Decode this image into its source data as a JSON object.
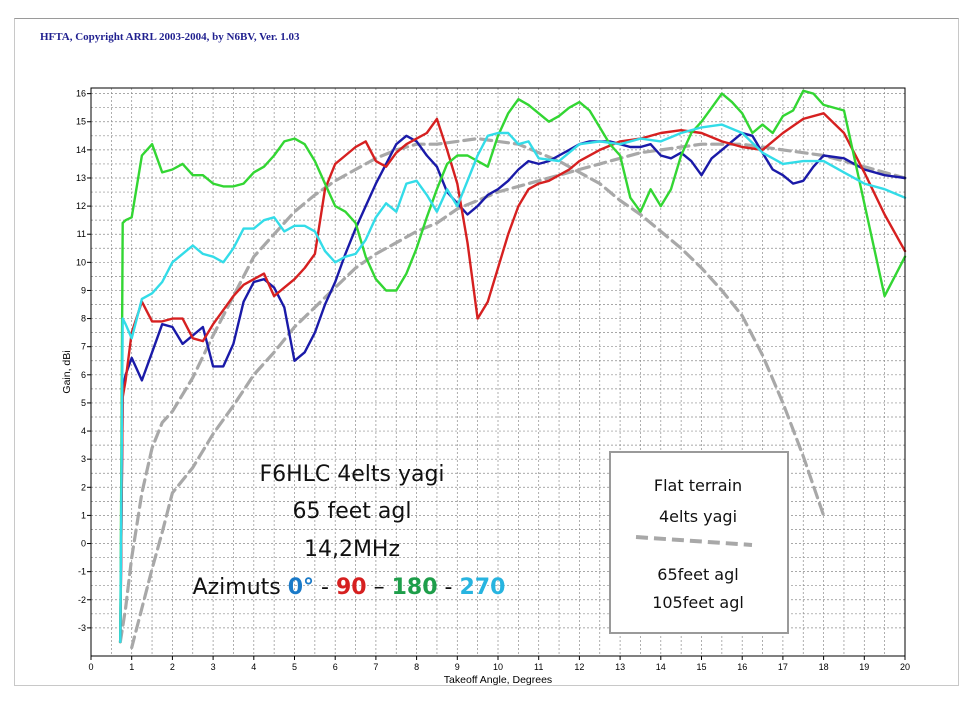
{
  "header": {
    "title": "HFTA, Copyright ARRL 2003-2004, by N6BV, Ver. 1.03"
  },
  "annotation": {
    "line1": "F6HLC 4elts yagi",
    "line2": "65 feet agl",
    "line3": "14,2MHz",
    "azimuths_prefix": "Azimuts ",
    "az0": "0°",
    "sep1": " - ",
    "az90": "90",
    "sep2": " – ",
    "az180": "180",
    "sep3": " - ",
    "az270": "270"
  },
  "legend_box": {
    "line1": "Flat terrain",
    "line2": "4elts yagi",
    "line3": "65feet agl",
    "line4": "105feet agl"
  },
  "colors": {
    "az0": "#1a1aa8",
    "az90": "#d62020",
    "az180": "#33d633",
    "az270": "#33dce8",
    "reference": "#a8a8a8"
  },
  "chart_data": {
    "type": "line",
    "title": "HFTA, Copyright ARRL 2003-2004, by N6BV, Ver. 1.03",
    "xlabel": "Takeoff Angle, Degrees",
    "ylabel": "Gain, dBi",
    "xlim": [
      0,
      20
    ],
    "ylim": [
      -4,
      16.2
    ],
    "x_ticks": [
      "0",
      "1",
      "2",
      "3",
      "4",
      "5",
      "6",
      "7",
      "8",
      "9",
      "10",
      "11",
      "12",
      "13",
      "14",
      "15",
      "16",
      "17",
      "18",
      "19",
      "20"
    ],
    "y_ticks": [
      "-3",
      "-2",
      "-1",
      "0",
      "1",
      "2",
      "3",
      "4",
      "5",
      "6",
      "7",
      "8",
      "9",
      "10",
      "11",
      "12",
      "13",
      "14",
      "15",
      "16"
    ],
    "grid": true,
    "series": [
      {
        "name": "0°",
        "color": "#1a1aa8",
        "x": [
          0.72,
          0.78,
          0.85,
          1.0,
          1.25,
          1.5,
          1.75,
          2.0,
          2.25,
          2.5,
          2.75,
          3.0,
          3.25,
          3.5,
          3.75,
          4.0,
          4.25,
          4.5,
          4.75,
          5.0,
          5.25,
          5.5,
          5.75,
          6.0,
          6.25,
          6.5,
          6.75,
          7.0,
          7.25,
          7.5,
          7.75,
          8.0,
          8.25,
          8.5,
          8.75,
          9.0,
          9.25,
          9.5,
          9.75,
          10.0,
          10.25,
          10.5,
          10.75,
          11.0,
          11.25,
          11.5,
          11.75,
          12.0,
          12.25,
          12.5,
          12.75,
          13.0,
          13.25,
          13.5,
          13.75,
          14.0,
          14.25,
          14.5,
          14.75,
          15.0,
          15.25,
          15.5,
          15.75,
          16.0,
          16.25,
          16.5,
          16.75,
          17.0,
          17.25,
          17.5,
          17.75,
          18.0,
          18.5,
          19.0,
          19.5,
          20.0
        ],
        "y": [
          -3.5,
          5.5,
          6.0,
          6.6,
          5.8,
          6.8,
          7.8,
          7.7,
          7.1,
          7.4,
          7.7,
          6.3,
          6.3,
          7.1,
          8.6,
          9.3,
          9.4,
          9.1,
          8.4,
          6.5,
          6.8,
          7.5,
          8.5,
          9.3,
          10.3,
          11.2,
          12.0,
          12.8,
          13.5,
          14.2,
          14.5,
          14.3,
          13.8,
          13.4,
          12.5,
          12.1,
          11.7,
          12.0,
          12.4,
          12.6,
          12.9,
          13.3,
          13.6,
          13.5,
          13.6,
          13.8,
          14.0,
          14.2,
          14.3,
          14.3,
          14.3,
          14.2,
          14.1,
          14.1,
          14.2,
          13.8,
          13.7,
          13.9,
          13.6,
          13.1,
          13.7,
          14.0,
          14.3,
          14.6,
          14.5,
          13.9,
          13.3,
          13.1,
          12.8,
          12.9,
          13.4,
          13.8,
          13.7,
          13.3,
          13.1,
          13.0
        ]
      },
      {
        "name": "90",
        "color": "#d62020",
        "x": [
          0.72,
          0.78,
          0.85,
          1.0,
          1.25,
          1.5,
          1.75,
          2.0,
          2.25,
          2.5,
          2.75,
          3.0,
          3.25,
          3.5,
          3.75,
          4.0,
          4.25,
          4.5,
          4.75,
          5.0,
          5.25,
          5.5,
          5.75,
          6.0,
          6.25,
          6.5,
          6.75,
          7.0,
          7.25,
          7.5,
          7.75,
          8.0,
          8.25,
          8.5,
          8.75,
          9.0,
          9.25,
          9.5,
          9.75,
          10.0,
          10.25,
          10.5,
          10.75,
          11.0,
          11.25,
          11.5,
          11.75,
          12.0,
          12.5,
          13.0,
          13.5,
          14.0,
          14.5,
          15.0,
          15.5,
          16.0,
          16.5,
          17.0,
          17.5,
          18.0,
          18.5,
          19.0,
          19.5,
          20.0
        ],
        "y": [
          -3.5,
          5.2,
          5.8,
          7.5,
          8.6,
          7.9,
          7.9,
          8.0,
          8.0,
          7.3,
          7.2,
          7.8,
          8.3,
          8.8,
          9.2,
          9.4,
          9.6,
          8.8,
          9.1,
          9.4,
          9.8,
          10.3,
          12.6,
          13.5,
          13.8,
          14.1,
          14.3,
          13.6,
          13.4,
          13.9,
          14.2,
          14.4,
          14.6,
          15.1,
          14.0,
          12.8,
          10.7,
          8.0,
          8.6,
          9.8,
          11.0,
          12.0,
          12.6,
          12.8,
          12.9,
          13.1,
          13.3,
          13.6,
          14.0,
          14.3,
          14.4,
          14.6,
          14.7,
          14.6,
          14.3,
          14.1,
          14.0,
          14.6,
          15.1,
          15.3,
          14.6,
          13.2,
          11.7,
          10.4
        ]
      },
      {
        "name": "180",
        "color": "#33d633",
        "x": [
          0.72,
          0.78,
          0.85,
          1.0,
          1.25,
          1.5,
          1.75,
          2.0,
          2.25,
          2.5,
          2.75,
          3.0,
          3.25,
          3.5,
          3.75,
          4.0,
          4.25,
          4.5,
          4.75,
          5.0,
          5.25,
          5.5,
          5.75,
          6.0,
          6.25,
          6.5,
          6.75,
          7.0,
          7.25,
          7.5,
          7.75,
          8.0,
          8.25,
          8.5,
          8.75,
          9.0,
          9.25,
          9.5,
          9.75,
          10.0,
          10.25,
          10.5,
          10.75,
          11.0,
          11.25,
          11.5,
          11.75,
          12.0,
          12.25,
          12.5,
          12.75,
          13.0,
          13.25,
          13.5,
          13.75,
          14.0,
          14.25,
          14.5,
          14.75,
          15.0,
          15.25,
          15.5,
          15.75,
          16.0,
          16.25,
          16.5,
          16.75,
          17.0,
          17.25,
          17.5,
          17.75,
          18.0,
          18.5,
          19.0,
          19.5,
          20.0
        ],
        "y": [
          -3.5,
          11.4,
          11.5,
          11.6,
          13.8,
          14.2,
          13.2,
          13.3,
          13.5,
          13.1,
          13.1,
          12.8,
          12.7,
          12.7,
          12.8,
          13.2,
          13.4,
          13.8,
          14.3,
          14.4,
          14.2,
          13.6,
          12.8,
          12.0,
          11.8,
          11.4,
          10.2,
          9.4,
          9.0,
          9.0,
          9.6,
          10.5,
          11.6,
          12.6,
          13.5,
          13.8,
          13.8,
          13.6,
          13.4,
          14.5,
          15.3,
          15.8,
          15.6,
          15.3,
          15.0,
          15.2,
          15.5,
          15.7,
          15.4,
          14.8,
          14.2,
          13.8,
          12.3,
          11.8,
          12.6,
          12.0,
          12.6,
          13.8,
          14.6,
          15.0,
          15.5,
          16.0,
          15.7,
          15.3,
          14.6,
          14.9,
          14.6,
          15.2,
          15.4,
          16.1,
          16.0,
          15.6,
          15.4,
          12.1,
          8.8,
          10.2
        ]
      },
      {
        "name": "270",
        "color": "#33dce8",
        "x": [
          0.72,
          0.78,
          0.85,
          1.0,
          1.25,
          1.5,
          1.75,
          2.0,
          2.25,
          2.5,
          2.75,
          3.0,
          3.25,
          3.5,
          3.75,
          4.0,
          4.25,
          4.5,
          4.75,
          5.0,
          5.25,
          5.5,
          5.75,
          6.0,
          6.25,
          6.5,
          6.75,
          7.0,
          7.25,
          7.5,
          7.75,
          8.0,
          8.25,
          8.5,
          8.75,
          9.0,
          9.25,
          9.5,
          9.75,
          10.0,
          10.25,
          10.5,
          10.75,
          11.0,
          11.5,
          12.0,
          12.5,
          13.0,
          13.5,
          14.0,
          14.5,
          15.0,
          15.5,
          16.0,
          16.5,
          17.0,
          17.5,
          18.0,
          18.5,
          19.0,
          19.5,
          20.0
        ],
        "y": [
          -3.5,
          8.0,
          7.8,
          7.3,
          8.7,
          8.9,
          9.3,
          10.0,
          10.3,
          10.6,
          10.3,
          10.2,
          10.0,
          10.5,
          11.2,
          11.2,
          11.5,
          11.6,
          11.1,
          11.3,
          11.3,
          11.1,
          10.4,
          10.0,
          10.2,
          10.3,
          10.8,
          11.6,
          12.1,
          11.8,
          12.8,
          12.9,
          12.4,
          11.8,
          12.6,
          12.0,
          12.9,
          13.8,
          14.5,
          14.6,
          14.6,
          14.2,
          14.3,
          13.7,
          13.6,
          14.2,
          14.3,
          14.2,
          14.4,
          14.3,
          14.6,
          14.8,
          14.9,
          14.6,
          13.9,
          13.5,
          13.6,
          13.6,
          13.2,
          12.8,
          12.6,
          12.3
        ]
      },
      {
        "name": "65feet agl",
        "color": "#a8a8a8",
        "dashed": true,
        "x": [
          0.72,
          0.85,
          1.0,
          1.25,
          1.5,
          1.75,
          2.0,
          2.5,
          3.0,
          3.5,
          4.0,
          4.5,
          5.0,
          5.5,
          6.0,
          6.5,
          7.0,
          7.5,
          8.0,
          8.5,
          9.0,
          9.5,
          10.0,
          10.5,
          11.0,
          11.5,
          12.0,
          12.5,
          13.0,
          13.5,
          14.0,
          14.5,
          15.0,
          15.5,
          16.0,
          16.5,
          17.0,
          17.5,
          18.0
        ],
        "y": [
          -3.5,
          -2.3,
          -0.5,
          1.8,
          3.4,
          4.3,
          4.7,
          5.9,
          7.4,
          8.8,
          10.2,
          11.0,
          11.8,
          12.4,
          12.9,
          13.3,
          13.7,
          14.0,
          14.2,
          14.2,
          14.3,
          14.4,
          14.3,
          14.2,
          13.9,
          13.6,
          13.2,
          12.8,
          12.2,
          11.7,
          11.1,
          10.5,
          9.8,
          9.0,
          8.1,
          6.7,
          5.0,
          3.1,
          1.0
        ]
      },
      {
        "name": "105feet agl",
        "color": "#a8a8a8",
        "dashed": true,
        "x": [
          1.0,
          1.25,
          1.5,
          1.75,
          2.0,
          2.5,
          3.0,
          3.5,
          4.0,
          4.5,
          5.0,
          5.5,
          6.0,
          6.5,
          7.0,
          7.5,
          8.0,
          8.5,
          9.0,
          9.5,
          10.0,
          10.5,
          11.0,
          11.5,
          12.0,
          12.5,
          13.0,
          13.5,
          14.0,
          14.5,
          15.0,
          15.5,
          16.0,
          16.5,
          17.0,
          17.5,
          18.0,
          18.5,
          19.0,
          19.5,
          20.0
        ],
        "y": [
          -3.7,
          -2.3,
          -0.9,
          0.4,
          1.8,
          2.7,
          3.9,
          4.9,
          6.0,
          6.8,
          7.7,
          8.4,
          9.1,
          9.8,
          10.3,
          10.7,
          11.1,
          11.4,
          11.9,
          12.2,
          12.5,
          12.7,
          12.9,
          13.1,
          13.3,
          13.5,
          13.7,
          13.9,
          14.0,
          14.1,
          14.2,
          14.2,
          14.2,
          14.1,
          14.0,
          13.9,
          13.8,
          13.6,
          13.4,
          13.2,
          13.0
        ]
      }
    ]
  }
}
